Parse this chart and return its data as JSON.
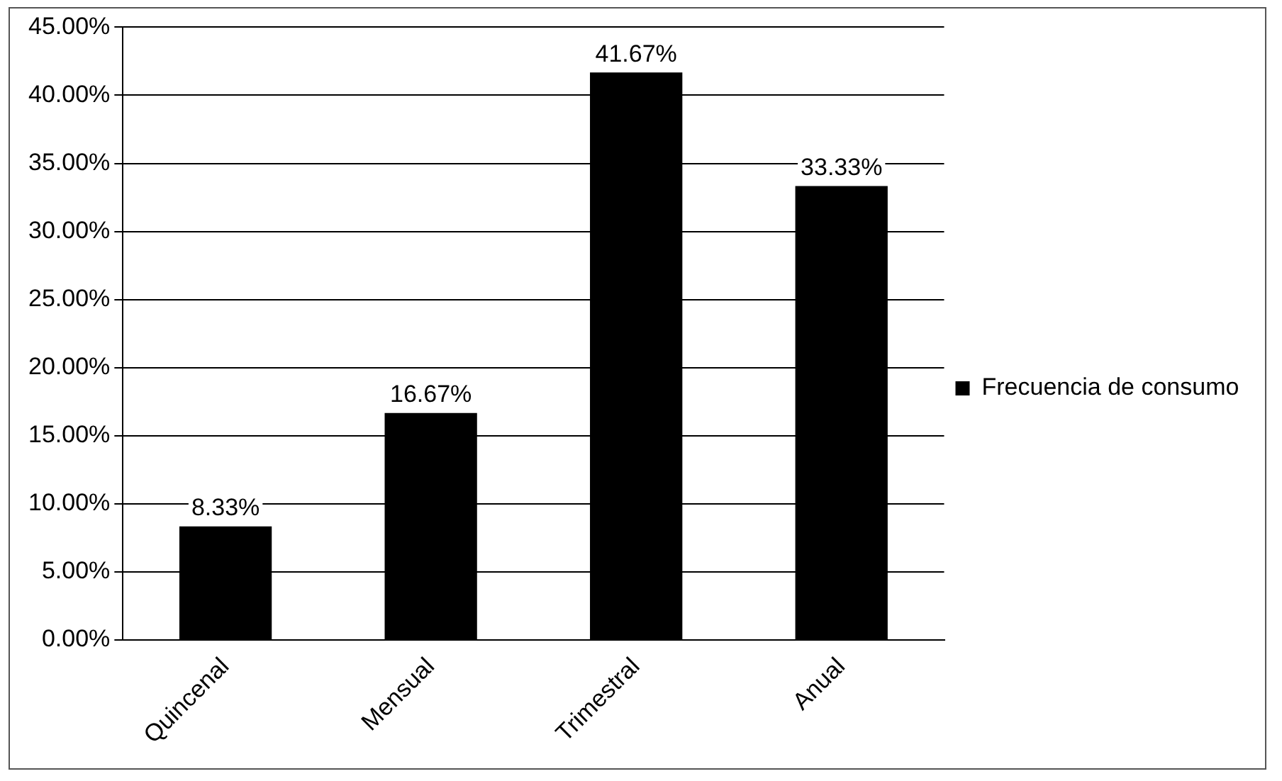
{
  "chart_data": {
    "type": "bar",
    "categories": [
      "Quincenal",
      "Mensual",
      "Trimestral",
      "Anual"
    ],
    "series": [
      {
        "name": "Frecuencia de consumo",
        "color": "#000000",
        "values": [
          8.33,
          16.67,
          41.67,
          33.33
        ],
        "value_labels": [
          "8.33%",
          "16.67%",
          "41.67%",
          "33.33%"
        ]
      }
    ],
    "ylim": [
      0,
      45
    ],
    "yticks": [
      {
        "value": 0,
        "label": "0.00%"
      },
      {
        "value": 5,
        "label": "5.00%"
      },
      {
        "value": 10,
        "label": "10.00%"
      },
      {
        "value": 15,
        "label": "15.00%"
      },
      {
        "value": 20,
        "label": "20.00%"
      },
      {
        "value": 25,
        "label": "25.00%"
      },
      {
        "value": 30,
        "label": "30.00%"
      },
      {
        "value": 35,
        "label": "35.00%"
      },
      {
        "value": 40,
        "label": "40.00%"
      },
      {
        "value": 45,
        "label": "45.00%"
      }
    ],
    "grid": "y",
    "legend": "right"
  }
}
